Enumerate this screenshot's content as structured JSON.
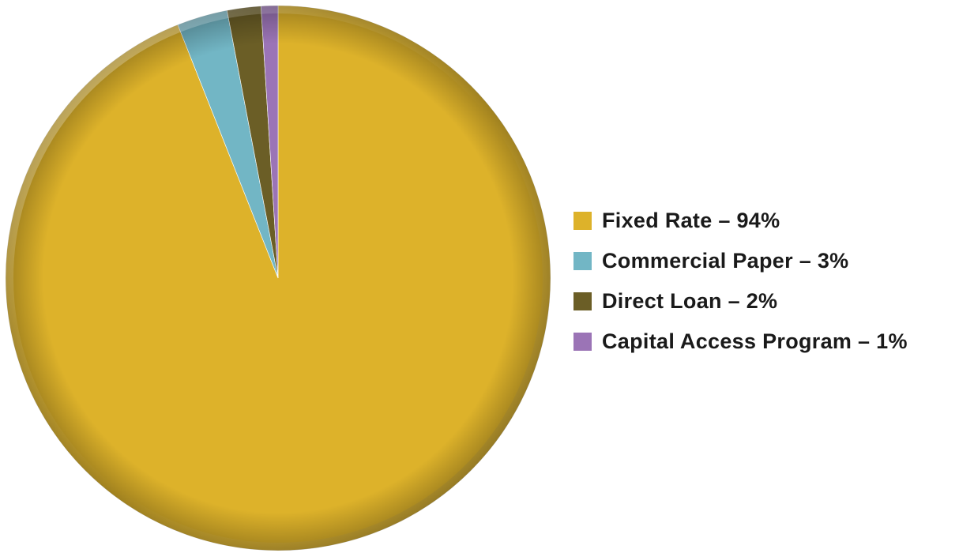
{
  "chart_data": {
    "type": "pie",
    "title": "",
    "slices": [
      {
        "label": "Fixed Rate",
        "value": 94,
        "color": "#DDB22A"
      },
      {
        "label": "Commercial Paper",
        "value": 3,
        "color": "#72B6C5"
      },
      {
        "label": "Direct Loan",
        "value": 2,
        "color": "#6B5E26"
      },
      {
        "label": "Capital Access Program",
        "value": 1,
        "color": "#9B74B6"
      }
    ],
    "legend_position": "right"
  },
  "legend": {
    "items": [
      {
        "text": "Fixed Rate – 94%",
        "color": "#DDB22A"
      },
      {
        "text": "Commercial Paper – 3%",
        "color": "#72B6C5"
      },
      {
        "text": "Direct Loan – 2%",
        "color": "#6B5E26"
      },
      {
        "text": "Capital Access Program – 1%",
        "color": "#9B74B6"
      }
    ]
  }
}
